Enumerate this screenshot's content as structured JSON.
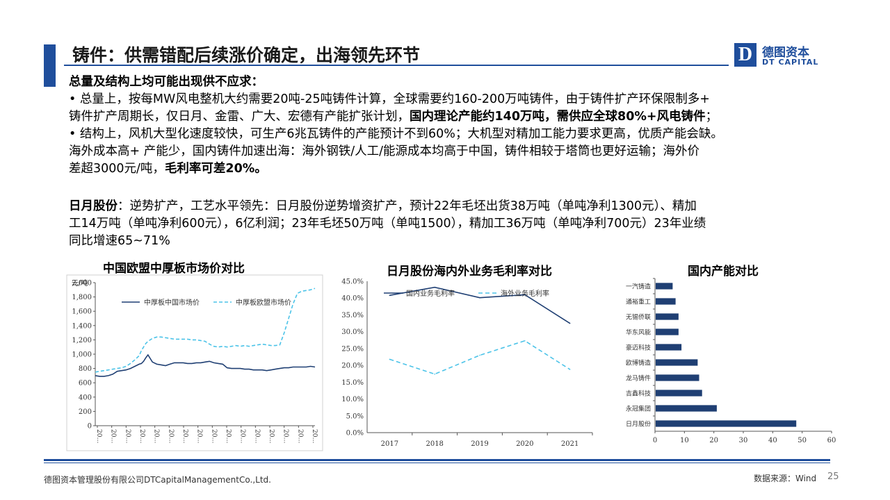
{
  "slide": {
    "title": "铸件：供需错配后续涨价确定，出海领先环节",
    "logo": {
      "box": "D",
      "name_cn": "德图资本",
      "name_en": "DT CAPITAL"
    },
    "heading1": "总量及结构上均可能出现供不应求：",
    "p1_line1": "• 总量上，按每MW风电整机大约需要20吨-25吨铸件计算，全球需要约160-200万吨铸件，由于铸件扩产环保限制多+",
    "p1_line2_plain": "铸件扩产周期长，仅日月、金雷、广大、宏德有产能扩张计划，",
    "p1_line2_bold": "国内理论产能约140万吨，需供应全球80%+风电铸件",
    "p1_line2_end": "；",
    "p2_line1": "• 结构上，风机大型化速度较快，可生产6兆瓦铸件的产能预计不到60%；大机型对精加工能力要求更高，优质产能会缺。",
    "p3_line1": "海外成本高+ 产能少，国内铸件加速出海：海外钢铁/人工/能源成本均高于中国，铸件相较于塔筒也更好运输；海外价",
    "p3_line2_plain": "差超3000元/吨，",
    "p3_line2_bold": "毛利率可差20%。",
    "riyue_label": "日月股份",
    "riyue_line1": "：逆势扩产，工艺水平领先：日月股份逆势增资扩产，预计22年毛坯出货38万吨（单吨净利1300元）、精加",
    "riyue_line2": "工14万吨（单吨净利600元），6亿利润；23年毛坯50万吨（单吨1500），精加工36万吨（单吨净利700元）23年业绩",
    "riyue_line3": "同比增速65~71%",
    "footer_left": "德图资本管理股份有限公司DTCapitalManagementCo.,Ltd.",
    "footer_right": "数据来源：Wind",
    "page_number": "25"
  },
  "chart_data": [
    {
      "type": "line",
      "title": "中国欧盟中厚板市场价对比",
      "ylabel": "元/吨",
      "ylim": [
        0,
        2000
      ],
      "yticks": [
        "0",
        "200",
        "400",
        "600",
        "800",
        "1,000",
        "1,200",
        "1,400",
        "1,600",
        "1,800",
        "2,000"
      ],
      "xtick_label": "20…",
      "xtick_count": 16,
      "x": [
        0,
        2,
        4,
        6,
        8,
        10,
        12,
        14,
        16,
        18,
        20,
        21,
        22,
        23,
        24,
        26,
        28,
        30,
        32,
        34,
        36,
        38,
        40,
        42,
        44,
        46,
        48,
        50,
        52,
        54,
        56,
        58,
        60,
        62,
        64,
        66,
        68,
        70,
        72,
        74,
        76,
        78,
        80,
        82,
        84,
        86,
        88,
        90,
        92,
        94,
        96,
        98,
        100
      ],
      "series": [
        {
          "name": "中厚板中国市场价",
          "color": "#1f3f73",
          "dash": "solid",
          "values": [
            700,
            690,
            690,
            700,
            720,
            760,
            770,
            780,
            800,
            830,
            860,
            870,
            900,
            950,
            990,
            890,
            860,
            850,
            840,
            860,
            880,
            880,
            880,
            870,
            870,
            880,
            880,
            890,
            900,
            880,
            870,
            860,
            810,
            800,
            800,
            800,
            790,
            790,
            780,
            780,
            780,
            770,
            780,
            790,
            800,
            810,
            810,
            820,
            820,
            820,
            820,
            830,
            820
          ]
        },
        {
          "name": "中厚板欧盟市场价",
          "color": "#4bc3e8",
          "dash": "dashed",
          "values": [
            750,
            760,
            770,
            780,
            790,
            800,
            810,
            830,
            870,
            920,
            980,
            1050,
            1100,
            1150,
            1180,
            1220,
            1240,
            1240,
            1230,
            1220,
            1210,
            1210,
            1210,
            1210,
            1200,
            1200,
            1190,
            1180,
            1140,
            1110,
            1100,
            1110,
            1100,
            1110,
            1120,
            1110,
            1120,
            1110,
            1120,
            1130,
            1140,
            1130,
            1120,
            1120,
            1130,
            1300,
            1500,
            1700,
            1850,
            1880,
            1890,
            1900,
            1920
          ]
        }
      ]
    },
    {
      "type": "line",
      "title": "日月股份海内外业务毛利率对比",
      "categories": [
        "2017",
        "2018",
        "2019",
        "2020",
        "2021"
      ],
      "ylim": [
        0,
        45
      ],
      "yticks": [
        "0.0%",
        "5.0%",
        "10.0%",
        "15.0%",
        "20.0%",
        "25.0%",
        "30.0%",
        "35.0%",
        "40.0%",
        "45.0%"
      ],
      "series": [
        {
          "name": "国内业务毛利率",
          "color": "#1f3f73",
          "dash": "solid",
          "values": [
            40.8,
            43.2,
            40.1,
            41.0,
            32.5
          ]
        },
        {
          "name": "海外业务毛利率",
          "color": "#4bc3e8",
          "dash": "dashed",
          "values": [
            21.8,
            17.4,
            23.0,
            27.3,
            18.8
          ]
        }
      ]
    },
    {
      "type": "bar",
      "orientation": "horizontal",
      "title": "国内产能对比",
      "categories": [
        "一汽铸造",
        "通裕重工",
        "无锡侨联",
        "华东风能",
        "豪迈科技",
        "欧博铸造",
        "龙马铸件",
        "吉鑫科技",
        "永冠集团",
        "日月股份"
      ],
      "values": [
        6,
        7,
        8,
        8,
        9,
        14.5,
        15,
        16,
        21,
        48
      ],
      "xlim": [
        0,
        60
      ],
      "xticks": [
        "0",
        "10",
        "20",
        "30",
        "40",
        "50",
        "60"
      ],
      "color": "#1f3f73"
    }
  ]
}
